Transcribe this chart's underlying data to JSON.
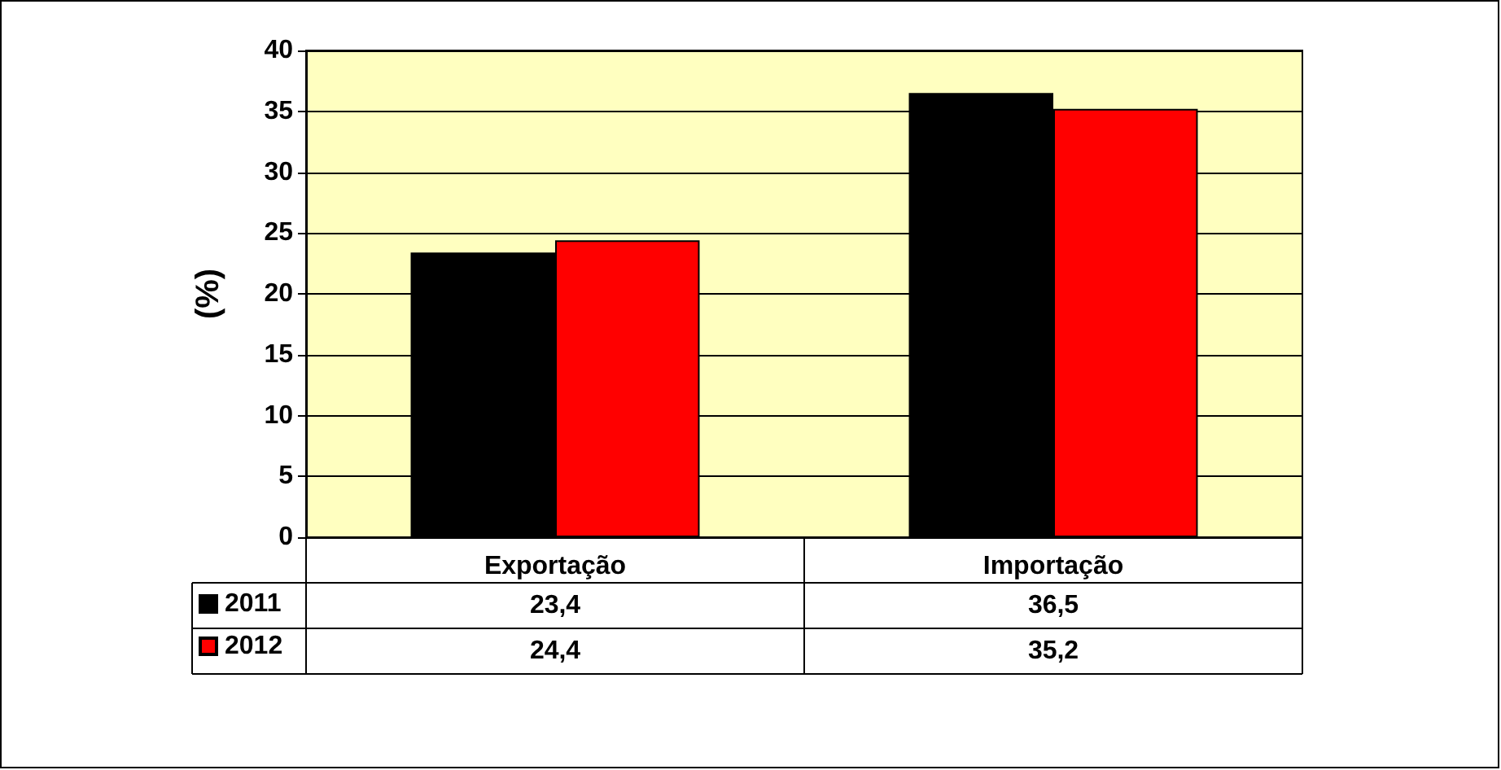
{
  "chart_data": {
    "type": "bar",
    "ylabel": "(%)",
    "categories": [
      "Exportação",
      "Importação"
    ],
    "series": [
      {
        "name": "2011",
        "color": "#000000",
        "values": [
          23.4,
          36.5
        ],
        "value_labels": [
          "23,4",
          "36,5"
        ]
      },
      {
        "name": "2012",
        "color": "#ff0000",
        "values": [
          24.4,
          35.2
        ],
        "value_labels": [
          "24,4",
          "35,2"
        ]
      }
    ],
    "ylim": [
      0,
      40
    ],
    "yticks": [
      0,
      5,
      10,
      15,
      20,
      25,
      30,
      35,
      40
    ],
    "grid": "y",
    "legend": "bottom"
  }
}
